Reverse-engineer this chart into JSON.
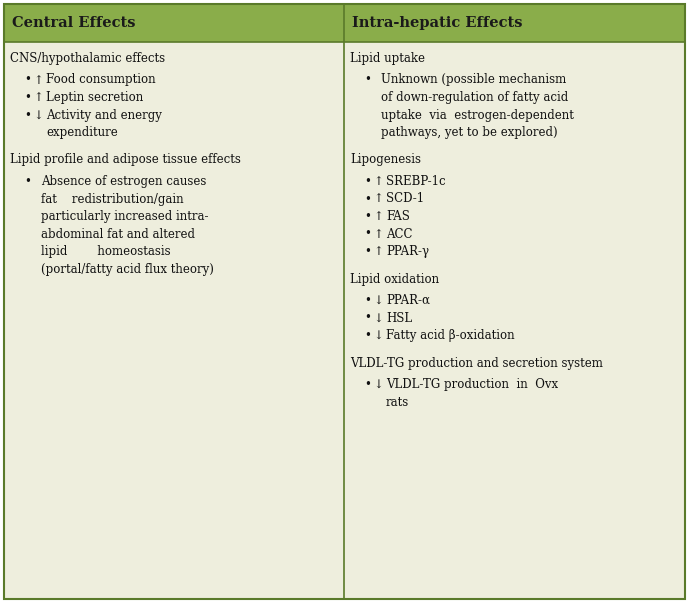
{
  "header_bg_color": "#8aad4a",
  "header_text_color": "#1a1a1a",
  "body_bg_color": "#eeeedd",
  "border_color": "#5a7a2a",
  "table_bg": "#ffffff",
  "header_left": "Central Effects",
  "header_right": "Intra-hepatic Effects",
  "col1_content": [
    {
      "type": "section",
      "text": "CNS/hypothalamic effects"
    },
    {
      "type": "bullet_arrow",
      "arrow": "↑",
      "text": "Food consumption"
    },
    {
      "type": "bullet_arrow",
      "arrow": "↑",
      "text": "Leptin secretion"
    },
    {
      "type": "bullet_arrow_2line",
      "arrow": "↓",
      "text1": "Activity and energy",
      "text2": "expenditure"
    },
    {
      "type": "spacer"
    },
    {
      "type": "section",
      "text": "Lipid profile and adipose tissue effects"
    },
    {
      "type": "bullet_justified",
      "lines": [
        "Absence of estrogen causes",
        "fat    redistribution/gain",
        "particularly increased intra-",
        "abdominal fat and altered",
        "lipid        homeostasis",
        "(portal/fatty acid flux theory)"
      ]
    }
  ],
  "col2_content": [
    {
      "type": "section",
      "text": "Lipid uptake"
    },
    {
      "type": "bullet_justified",
      "lines": [
        "Unknown (possible mechanism",
        "of down-regulation of fatty acid",
        "uptake  via  estrogen-dependent",
        "pathways, yet to be explored)"
      ]
    },
    {
      "type": "spacer"
    },
    {
      "type": "section",
      "text": "Lipogenesis"
    },
    {
      "type": "bullet_arrow",
      "arrow": "↑",
      "text": "SREBP-1c"
    },
    {
      "type": "bullet_arrow",
      "arrow": "↑",
      "text": "SCD-1"
    },
    {
      "type": "bullet_arrow",
      "arrow": "↑",
      "text": "FAS"
    },
    {
      "type": "bullet_arrow",
      "arrow": "↑",
      "text": "ACC"
    },
    {
      "type": "bullet_arrow",
      "arrow": "↑",
      "text": "PPAR-γ"
    },
    {
      "type": "spacer"
    },
    {
      "type": "section",
      "text": "Lipid oxidation"
    },
    {
      "type": "bullet_arrow",
      "arrow": "↓",
      "text": "PPAR-α"
    },
    {
      "type": "bullet_arrow",
      "arrow": "↓",
      "text": "HSL"
    },
    {
      "type": "bullet_arrow",
      "arrow": "↓",
      "text": "Fatty acid β-oxidation"
    },
    {
      "type": "spacer"
    },
    {
      "type": "section",
      "text": "VLDL-TG production and secretion system"
    },
    {
      "type": "bullet_arrow_2line",
      "arrow": "↓",
      "text1": "VLDL-TG production  in  Ovx",
      "text2": "rats"
    }
  ],
  "font_size": 8.5,
  "header_font_size": 10.5,
  "fig_width": 6.89,
  "fig_height": 6.03,
  "dpi": 100
}
